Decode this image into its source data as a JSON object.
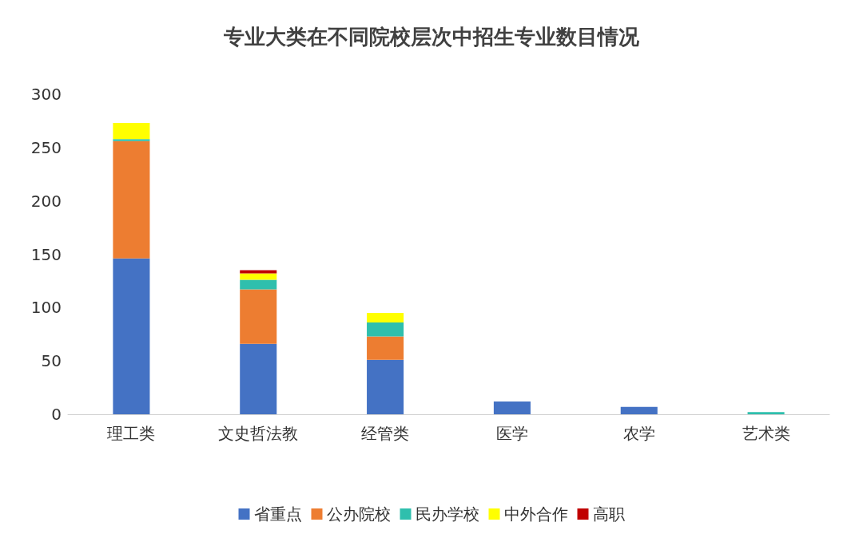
{
  "chart_data": {
    "type": "bar",
    "title": "专业大类在不同院校层次中招生专业数目情况",
    "stacked": true,
    "categories": [
      "理工类",
      "文史哲法教",
      "经管类",
      "医学",
      "农学",
      "艺术类"
    ],
    "series": [
      {
        "name": "省重点",
        "color": "#4472c4",
        "values": [
          146,
          66,
          51,
          12,
          7,
          null
        ]
      },
      {
        "name": "公办院校",
        "color": "#ed7d31",
        "values": [
          110,
          51,
          22,
          null,
          null,
          null
        ]
      },
      {
        "name": "民办学校",
        "color": "#2fbfad",
        "values": [
          2,
          9,
          13,
          null,
          null,
          2
        ]
      },
      {
        "name": "中外合作",
        "color": "#ffff00",
        "values": [
          15,
          6,
          9,
          null,
          null,
          null
        ]
      },
      {
        "name": "高职",
        "color": "#c00000",
        "values": [
          null,
          3,
          null,
          null,
          null,
          null
        ]
      }
    ],
    "ylim": [
      0,
      300
    ],
    "yticks": [
      0,
      50,
      100,
      150,
      200,
      250,
      300
    ],
    "grid": false,
    "legend": "bottom"
  }
}
